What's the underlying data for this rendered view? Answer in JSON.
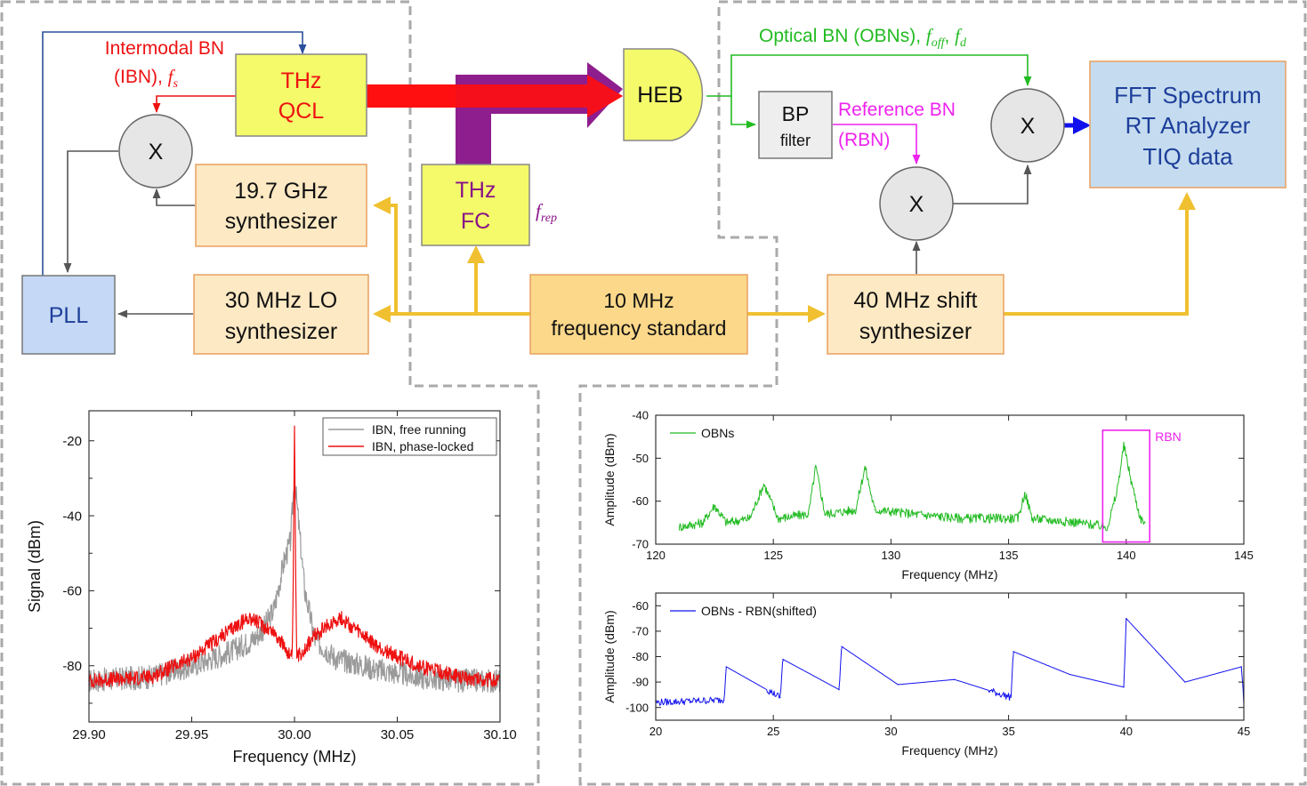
{
  "diagram": {
    "blocks": {
      "qcl": [
        "THz",
        "QCL"
      ],
      "heb": "HEB",
      "bp": [
        "BP",
        "filter"
      ],
      "fft": [
        "FFT Spectrum",
        "RT Analyzer",
        "TIQ data"
      ],
      "mixer": "X",
      "synth197": [
        "19.7 GHz",
        "synthesizer"
      ],
      "thzfc": [
        "THz",
        "FC"
      ],
      "pll": "PLL",
      "lo30": [
        "30 MHz LO",
        "synthesizer"
      ],
      "std10": [
        "10 MHz",
        "frequency standard"
      ],
      "shift40": [
        "40 MHz shift",
        "synthesizer"
      ]
    },
    "labels": {
      "ibn_line1": "Intermodal BN",
      "ibn_line2": "(IBN), ",
      "ibn_f": "f",
      "ibn_sub": "s",
      "obn_text": "Optical BN (OBNs), ",
      "obn_f1": "f",
      "obn_sub1": "off",
      "obn_comma": ", ",
      "obn_f2": "f",
      "obn_sub2": "d",
      "rbn_line1": "Reference BN",
      "rbn_line2": "(RBN)",
      "frep_f": "f",
      "frep_sub": "rep"
    },
    "colors": {
      "ibn": "#ee1111",
      "obn": "#22bb22",
      "rbn": "#ee22ee",
      "frep": "#881288",
      "ref": "#f0c030",
      "pll_link": "#2a4f9a",
      "fft_arrow": "#1010ee",
      "gray_link": "#555555"
    }
  },
  "chart_data": [
    {
      "type": "line",
      "xlabel": "Frequency (MHz)",
      "ylabel": "Signal (dBm)",
      "xlim": [
        29.9,
        30.1
      ],
      "ylim": [
        -95,
        -12
      ],
      "xticks": [
        29.9,
        29.95,
        30.0,
        30.05,
        30.1
      ],
      "xtick_labels": [
        "29.90",
        "29.95",
        "30.00",
        "30.05",
        "30.10"
      ],
      "yticks": [
        -20,
        -40,
        -60,
        -80
      ],
      "yminor": [
        -30,
        -50,
        -70,
        -90
      ],
      "legend": "top-right",
      "series": [
        {
          "name": "IBN, free running",
          "color": "#9a9a9a",
          "x": [
            29.9,
            29.93,
            29.95,
            29.97,
            29.98,
            29.985,
            29.99,
            29.995,
            29.998,
            30.0,
            30.005,
            30.01,
            30.02,
            30.04,
            30.06,
            30.08,
            30.1
          ],
          "y": [
            -84,
            -83,
            -80,
            -76,
            -73,
            -70,
            -65,
            -52,
            -47,
            -30,
            -60,
            -73,
            -78,
            -81,
            -83,
            -84,
            -84
          ]
        },
        {
          "name": "IBN, phase-locked",
          "color": "#ee1111",
          "x": [
            29.9,
            29.93,
            29.95,
            29.97,
            29.978,
            29.99,
            29.999,
            30.0,
            30.001,
            30.01,
            30.022,
            30.04,
            30.06,
            30.08,
            30.1
          ],
          "y": [
            -84,
            -83,
            -78,
            -70,
            -67,
            -71,
            -78,
            -18,
            -78,
            -72,
            -67,
            -75,
            -80,
            -83,
            -84
          ]
        }
      ]
    },
    {
      "type": "line",
      "xlabel": "Frequency (MHz)",
      "ylabel": "Amplitude (dBm)",
      "xlim": [
        120,
        145
      ],
      "ylim": [
        -70,
        -40
      ],
      "xticks": [
        120,
        125,
        130,
        135,
        140,
        145
      ],
      "yticks": [
        -40,
        -50,
        -60,
        -70
      ],
      "legend": "top-left",
      "annotation": "RBN",
      "annotation_color": "#ee22ee",
      "annotation_box_x": [
        139,
        141
      ],
      "annotation_box_y": [
        -69.5,
        -43.5
      ],
      "series": [
        {
          "name": "OBNs",
          "color": "#22bb22",
          "x": [
            121,
            122,
            122.5,
            123,
            124,
            124.6,
            125.2,
            126.5,
            126.8,
            127.2,
            128.5,
            128.9,
            129.3,
            131,
            133,
            135.4,
            135.7,
            136,
            138,
            139.2,
            139.6,
            139.9,
            140.2,
            140.6,
            140.8
          ],
          "y": [
            -66,
            -65,
            -61,
            -65,
            -64,
            -56,
            -64,
            -63,
            -52,
            -63,
            -62,
            -52,
            -62,
            -63,
            -64,
            -64,
            -58,
            -64,
            -65,
            -66,
            -58,
            -47,
            -55,
            -64,
            -65
          ]
        }
      ]
    },
    {
      "type": "line",
      "xlabel": "Frequency (MHz)",
      "ylabel": "Amplitude (dBm)",
      "xlim": [
        20,
        45
      ],
      "ylim": [
        -105,
        -55
      ],
      "xticks": [
        20,
        25,
        30,
        35,
        40,
        45
      ],
      "yticks": [
        -60,
        -70,
        -80,
        -90,
        -100
      ],
      "legend": "top-left",
      "series": [
        {
          "name": "OBNs - RBN(shifted)",
          "color": "#1010ee",
          "x": [
            20,
            22.9,
            23,
            25.3,
            25.4,
            27.8,
            27.9,
            30.3,
            32.7,
            35.1,
            35.2,
            37.6,
            39.9,
            40,
            42.5,
            44.9,
            45
          ],
          "y": [
            -98,
            -97,
            -84,
            -96,
            -81,
            -93,
            -76,
            -91,
            -89,
            -96,
            -78,
            -87,
            -92,
            -65,
            -90,
            -84,
            -98
          ]
        }
      ]
    }
  ]
}
